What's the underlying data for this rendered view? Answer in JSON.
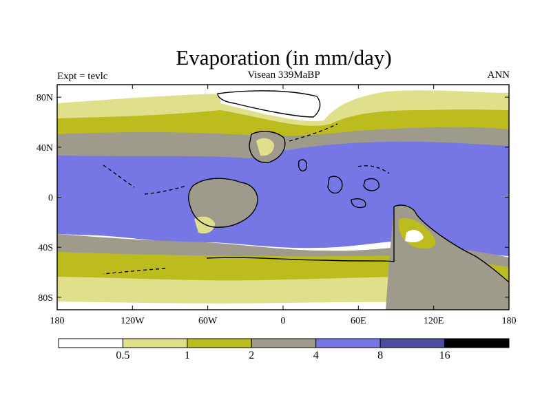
{
  "title": "Evaporation (in mm/day)",
  "left_subtitle": "Expt = tevlc",
  "center_subtitle": "Visean 339MaBP",
  "right_subtitle": "ANN",
  "colors": {
    "white": "#ffffff",
    "light_olive": "#e0e08c",
    "olive": "#bcbc1e",
    "gray": "#9e9a8c",
    "blue": "#7676e4",
    "dark_blue": "#4c4c9e",
    "black": "#000000"
  },
  "y_ticks": [
    {
      "label": "80N",
      "lat": 80
    },
    {
      "label": "40N",
      "lat": 40
    },
    {
      "label": "0",
      "lat": 0
    },
    {
      "label": "40S",
      "lat": -40
    },
    {
      "label": "80S",
      "lat": -80
    }
  ],
  "x_ticks": [
    {
      "label": "180",
      "lon": -180
    },
    {
      "label": "120W",
      "lon": -120
    },
    {
      "label": "60W",
      "lon": -60
    },
    {
      "label": "0",
      "lon": 0
    },
    {
      "label": "60E",
      "lon": 60
    },
    {
      "label": "120E",
      "lon": 120
    },
    {
      "label": "180",
      "lon": 180
    }
  ],
  "colorbar": {
    "labels": [
      "0.5",
      "1",
      "2",
      "4",
      "8",
      "16"
    ],
    "bins": [
      "white",
      "light_olive",
      "olive",
      "gray",
      "blue",
      "dark_blue",
      "black"
    ]
  }
}
